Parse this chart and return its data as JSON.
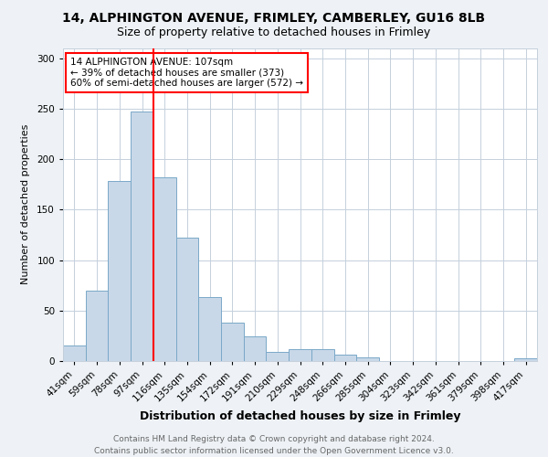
{
  "title1": "14, ALPHINGTON AVENUE, FRIMLEY, CAMBERLEY, GU16 8LB",
  "title2": "Size of property relative to detached houses in Frimley",
  "xlabel": "Distribution of detached houses by size in Frimley",
  "ylabel": "Number of detached properties",
  "bin_labels": [
    "41sqm",
    "59sqm",
    "78sqm",
    "97sqm",
    "116sqm",
    "135sqm",
    "154sqm",
    "172sqm",
    "191sqm",
    "210sqm",
    "229sqm",
    "248sqm",
    "266sqm",
    "285sqm",
    "304sqm",
    "323sqm",
    "342sqm",
    "361sqm",
    "379sqm",
    "398sqm",
    "417sqm"
  ],
  "bar_heights": [
    15,
    70,
    178,
    247,
    182,
    122,
    63,
    38,
    24,
    9,
    12,
    12,
    6,
    4,
    0,
    0,
    0,
    0,
    0,
    0,
    3
  ],
  "bar_color": "#c8d8e8",
  "bar_edge_color": "#7aa8c8",
  "vline_x": 3.5,
  "vline_color": "red",
  "annotation_text": "14 ALPHINGTON AVENUE: 107sqm\n← 39% of detached houses are smaller (373)\n60% of semi-detached houses are larger (572) →",
  "annotation_box_color": "white",
  "annotation_box_edge": "red",
  "ylim": [
    0,
    310
  ],
  "yticks": [
    0,
    50,
    100,
    150,
    200,
    250,
    300
  ],
  "footer_text": "Contains HM Land Registry data © Crown copyright and database right 2024.\nContains public sector information licensed under the Open Government Licence v3.0.",
  "bg_color": "#eef2f6",
  "plot_bg_color": "white",
  "title1_fontsize": 10,
  "title2_fontsize": 9,
  "xlabel_fontsize": 9,
  "ylabel_fontsize": 8,
  "tick_fontsize": 7.5,
  "annotation_fontsize": 7.5,
  "footer_fontsize": 6.5
}
